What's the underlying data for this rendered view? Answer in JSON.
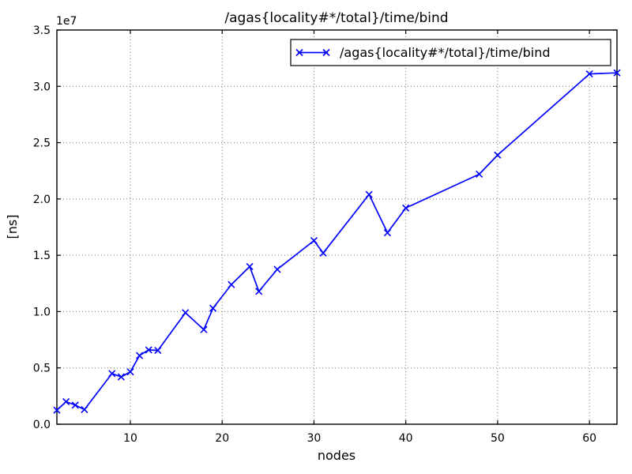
{
  "figure": {
    "background": "#ffffff"
  },
  "chart_data": {
    "type": "line",
    "title": "/agas{locality#*/total}/time/bind",
    "xlabel": "nodes",
    "ylabel": "[ns]",
    "offset_text": "1e7",
    "grid": true,
    "legend": {
      "position": "upper right",
      "entries": [
        {
          "label": "/agas{locality#*/total}/time/bind",
          "color": "#0000ff",
          "marker": "x"
        }
      ]
    },
    "xlim": [
      2,
      63
    ],
    "ylim": [
      0,
      35000000
    ],
    "xticks": {
      "values": [
        10,
        20,
        30,
        40,
        50,
        60
      ],
      "labels": [
        "10",
        "20",
        "30",
        "40",
        "50",
        "60"
      ]
    },
    "yticks": {
      "values": [
        0,
        5000000,
        10000000,
        15000000,
        20000000,
        25000000,
        30000000,
        35000000
      ],
      "labels": [
        "0.0",
        "0.5",
        "1.0",
        "1.5",
        "2.0",
        "2.5",
        "3.0",
        "3.5"
      ]
    },
    "series": [
      {
        "name": "/agas{locality#*/total}/time/bind",
        "color": "#0000ff",
        "marker": "x",
        "x": [
          2,
          3,
          4,
          5,
          8,
          9,
          10,
          11,
          12,
          13,
          16,
          18,
          19,
          21,
          23,
          24,
          26,
          30,
          31,
          36,
          38,
          40,
          48,
          50,
          60,
          63
        ],
        "y": [
          1250000,
          2000000,
          1700000,
          1300000,
          4500000,
          4200000,
          4650000,
          6100000,
          6600000,
          6550000,
          9900000,
          8400000,
          10300000,
          12400000,
          14000000,
          11800000,
          13750000,
          16300000,
          15200000,
          20400000,
          17000000,
          19200000,
          22200000,
          23900000,
          31100000,
          31200000
        ]
      }
    ],
    "colors": {
      "line": "#0000ff",
      "grid": "#777777",
      "spine": "#000000",
      "text": "#000000",
      "background": "#ffffff"
    }
  }
}
